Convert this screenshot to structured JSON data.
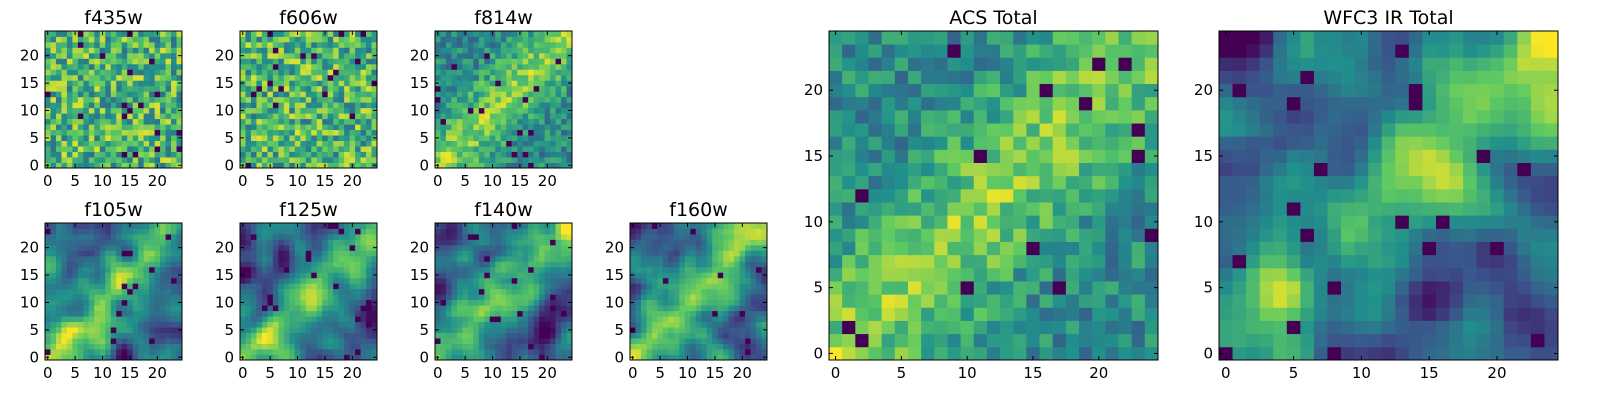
{
  "chart_data": [
    {
      "type": "heatmap",
      "title": "f435w",
      "size": 25,
      "xticks": [
        "0",
        "5",
        "10",
        "15",
        "20"
      ],
      "yticks": [
        "0",
        "5",
        "10",
        "15",
        "20"
      ],
      "xlim": [
        0,
        25
      ],
      "ylim": [
        0,
        25
      ],
      "texture": "noise"
    },
    {
      "type": "heatmap",
      "title": "f606w",
      "size": 25,
      "xticks": [
        "0",
        "5",
        "10",
        "15",
        "20"
      ],
      "yticks": [
        "0",
        "5",
        "10",
        "15",
        "20"
      ],
      "xlim": [
        0,
        25
      ],
      "ylim": [
        0,
        25
      ],
      "texture": "noise"
    },
    {
      "type": "heatmap",
      "title": "f814w",
      "size": 25,
      "xticks": [
        "0",
        "5",
        "10",
        "15",
        "20"
      ],
      "yticks": [
        "0",
        "5",
        "10",
        "15",
        "20"
      ],
      "xlim": [
        0,
        25
      ],
      "ylim": [
        0,
        25
      ],
      "texture": "noise-signal"
    },
    {
      "type": "heatmap",
      "title": "f105w",
      "size": 25,
      "xticks": [
        "0",
        "5",
        "10",
        "15",
        "20"
      ],
      "yticks": [
        "0",
        "5",
        "10",
        "15",
        "20"
      ],
      "xlim": [
        0,
        25
      ],
      "ylim": [
        0,
        25
      ],
      "texture": "smooth"
    },
    {
      "type": "heatmap",
      "title": "f125w",
      "size": 25,
      "xticks": [
        "0",
        "5",
        "10",
        "15",
        "20"
      ],
      "yticks": [
        "0",
        "5",
        "10",
        "15",
        "20"
      ],
      "xlim": [
        0,
        25
      ],
      "ylim": [
        0,
        25
      ],
      "texture": "smooth"
    },
    {
      "type": "heatmap",
      "title": "f140w",
      "size": 25,
      "xticks": [
        "0",
        "5",
        "10",
        "15",
        "20"
      ],
      "yticks": [
        "0",
        "5",
        "10",
        "15",
        "20"
      ],
      "xlim": [
        0,
        25
      ],
      "ylim": [
        0,
        25
      ],
      "texture": "smooth"
    },
    {
      "type": "heatmap",
      "title": "f160w",
      "size": 25,
      "xticks": [
        "0",
        "5",
        "10",
        "15",
        "20"
      ],
      "yticks": [
        "0",
        "5",
        "10",
        "15",
        "20"
      ],
      "xlim": [
        0,
        25
      ],
      "ylim": [
        0,
        25
      ],
      "texture": "smooth"
    },
    {
      "type": "heatmap",
      "title": "ACS Total",
      "size": 25,
      "xticks": [
        "0",
        "5",
        "10",
        "15",
        "20"
      ],
      "yticks": [
        "0",
        "5",
        "10",
        "15",
        "20"
      ],
      "xlim": [
        0,
        25
      ],
      "ylim": [
        0,
        25
      ],
      "texture": "noise-signal"
    },
    {
      "type": "heatmap",
      "title": "WFC3 IR Total",
      "size": 25,
      "xticks": [
        "0",
        "5",
        "10",
        "15",
        "20"
      ],
      "yticks": [
        "0",
        "5",
        "10",
        "15",
        "20"
      ],
      "xlim": [
        0,
        25
      ],
      "ylim": [
        0,
        25
      ],
      "texture": "smooth"
    }
  ],
  "colormap": [
    "#440154",
    "#3b528b",
    "#21918c",
    "#5ec962",
    "#fde725"
  ]
}
